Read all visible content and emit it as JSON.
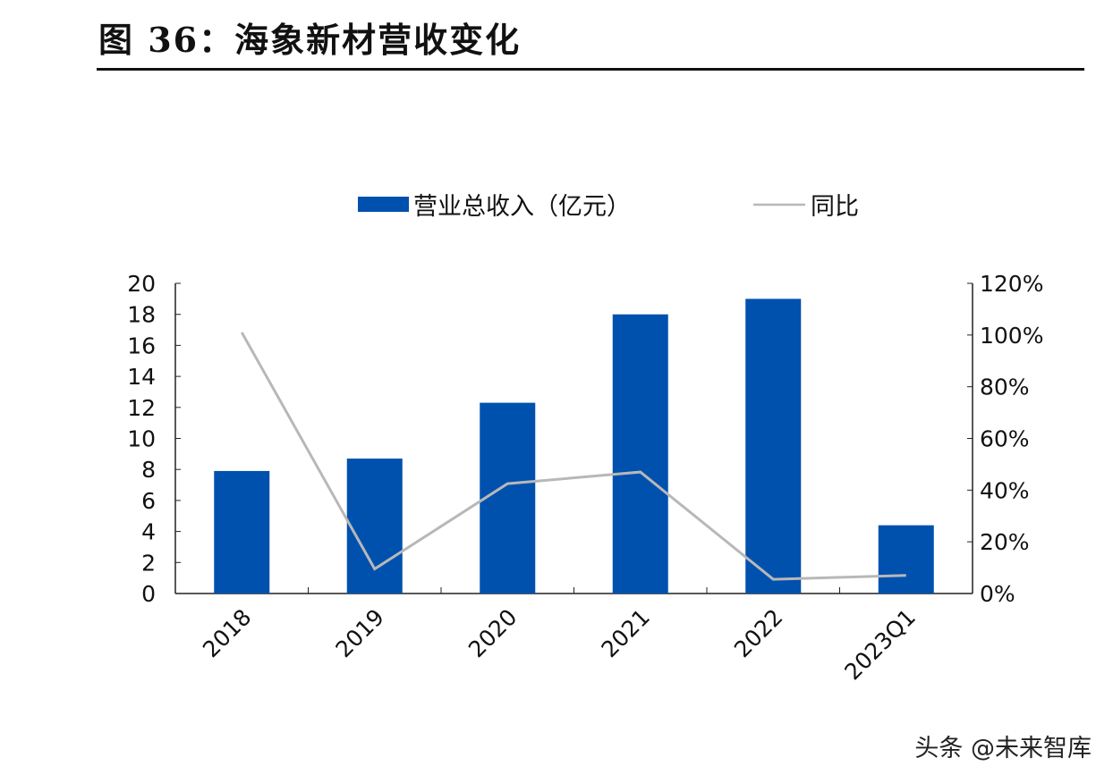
{
  "title": "图 36：海象新材营收变化",
  "watermark": "头条 @未来智库",
  "chart_data": {
    "type": "bar",
    "title": "",
    "categories": [
      "2018",
      "2019",
      "2020",
      "2021",
      "2022",
      "2023Q1"
    ],
    "series": [
      {
        "name": "营业总收入（亿元）",
        "type": "bar",
        "axis": "left",
        "color": "#0051AE",
        "values": [
          7.9,
          8.7,
          12.3,
          18.0,
          19.0,
          4.4
        ]
      },
      {
        "name": "同比",
        "type": "line",
        "axis": "right",
        "color": "#B8B8B8",
        "values": [
          101,
          9.5,
          42.5,
          47,
          5.5,
          7
        ]
      }
    ],
    "y_left": {
      "ylim": [
        0,
        20
      ],
      "ticks": [
        0,
        2,
        4,
        6,
        8,
        10,
        12,
        14,
        16,
        18,
        20
      ]
    },
    "y_right": {
      "ylim": [
        0,
        120
      ],
      "ticks": [
        "0%",
        "20%",
        "40%",
        "60%",
        "80%",
        "100%",
        "120%"
      ]
    },
    "legend": "top",
    "grid": false
  }
}
